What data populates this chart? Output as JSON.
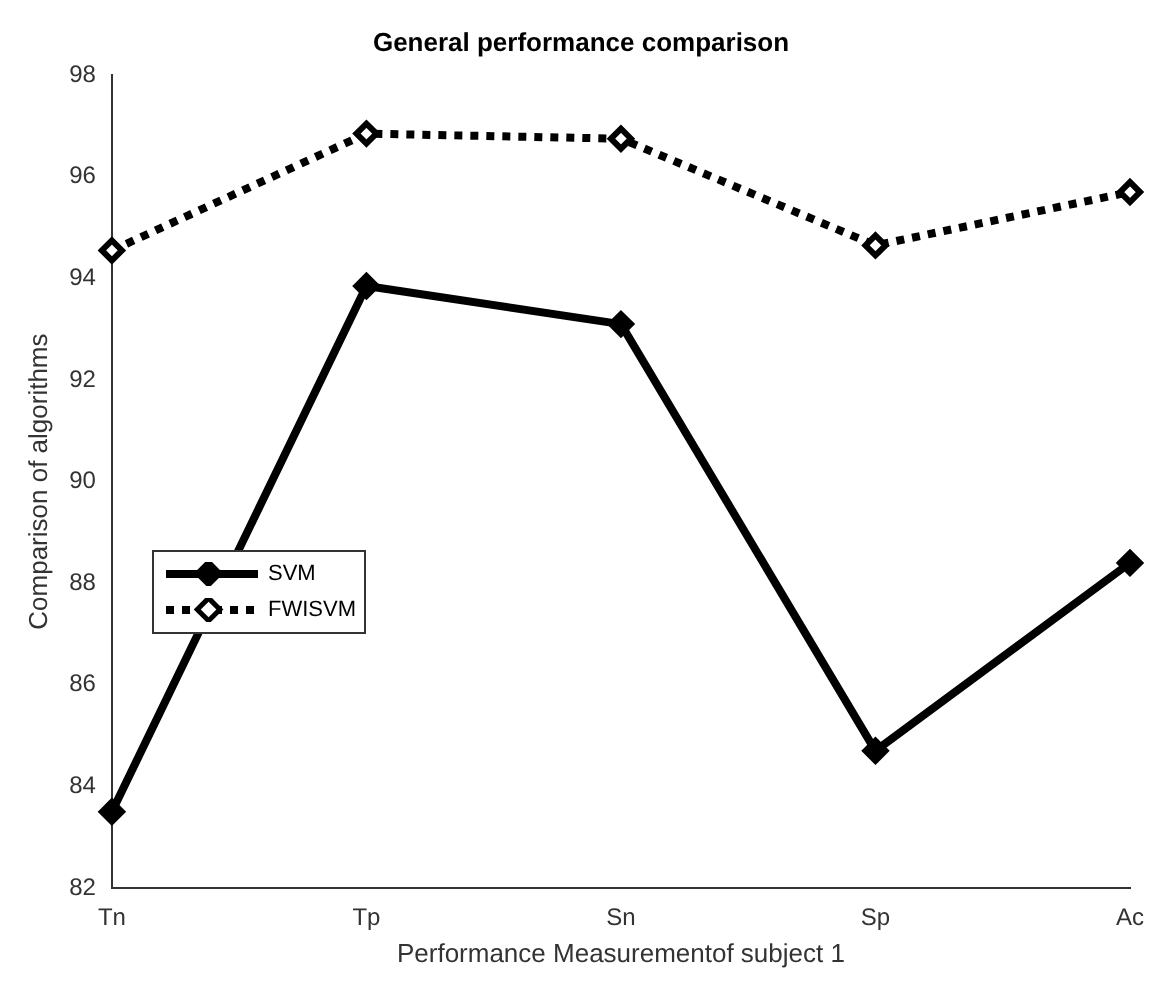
{
  "chart_data": {
    "type": "line",
    "title": "General performance comparison",
    "xlabel": "Performance Measurementof subject 1",
    "ylabel": "Comparison of algorithms",
    "categories": [
      "Tn",
      "Tp",
      "Sn",
      "Sp",
      "Ac"
    ],
    "series": [
      {
        "name": "SVM",
        "color": "#000000",
        "values": [
          83.5,
          93.85,
          93.1,
          84.7,
          88.4
        ],
        "line_style": "solid"
      },
      {
        "name": "FWISVM",
        "color": "#000000",
        "values": [
          94.55,
          96.85,
          96.75,
          94.65,
          95.7
        ],
        "line_style": "dotted"
      }
    ],
    "ylim": [
      82,
      98
    ],
    "yticks": [
      82,
      84,
      86,
      88,
      90,
      92,
      94,
      96,
      98
    ],
    "grid": false,
    "legend": "left",
    "marker": "diamond"
  }
}
